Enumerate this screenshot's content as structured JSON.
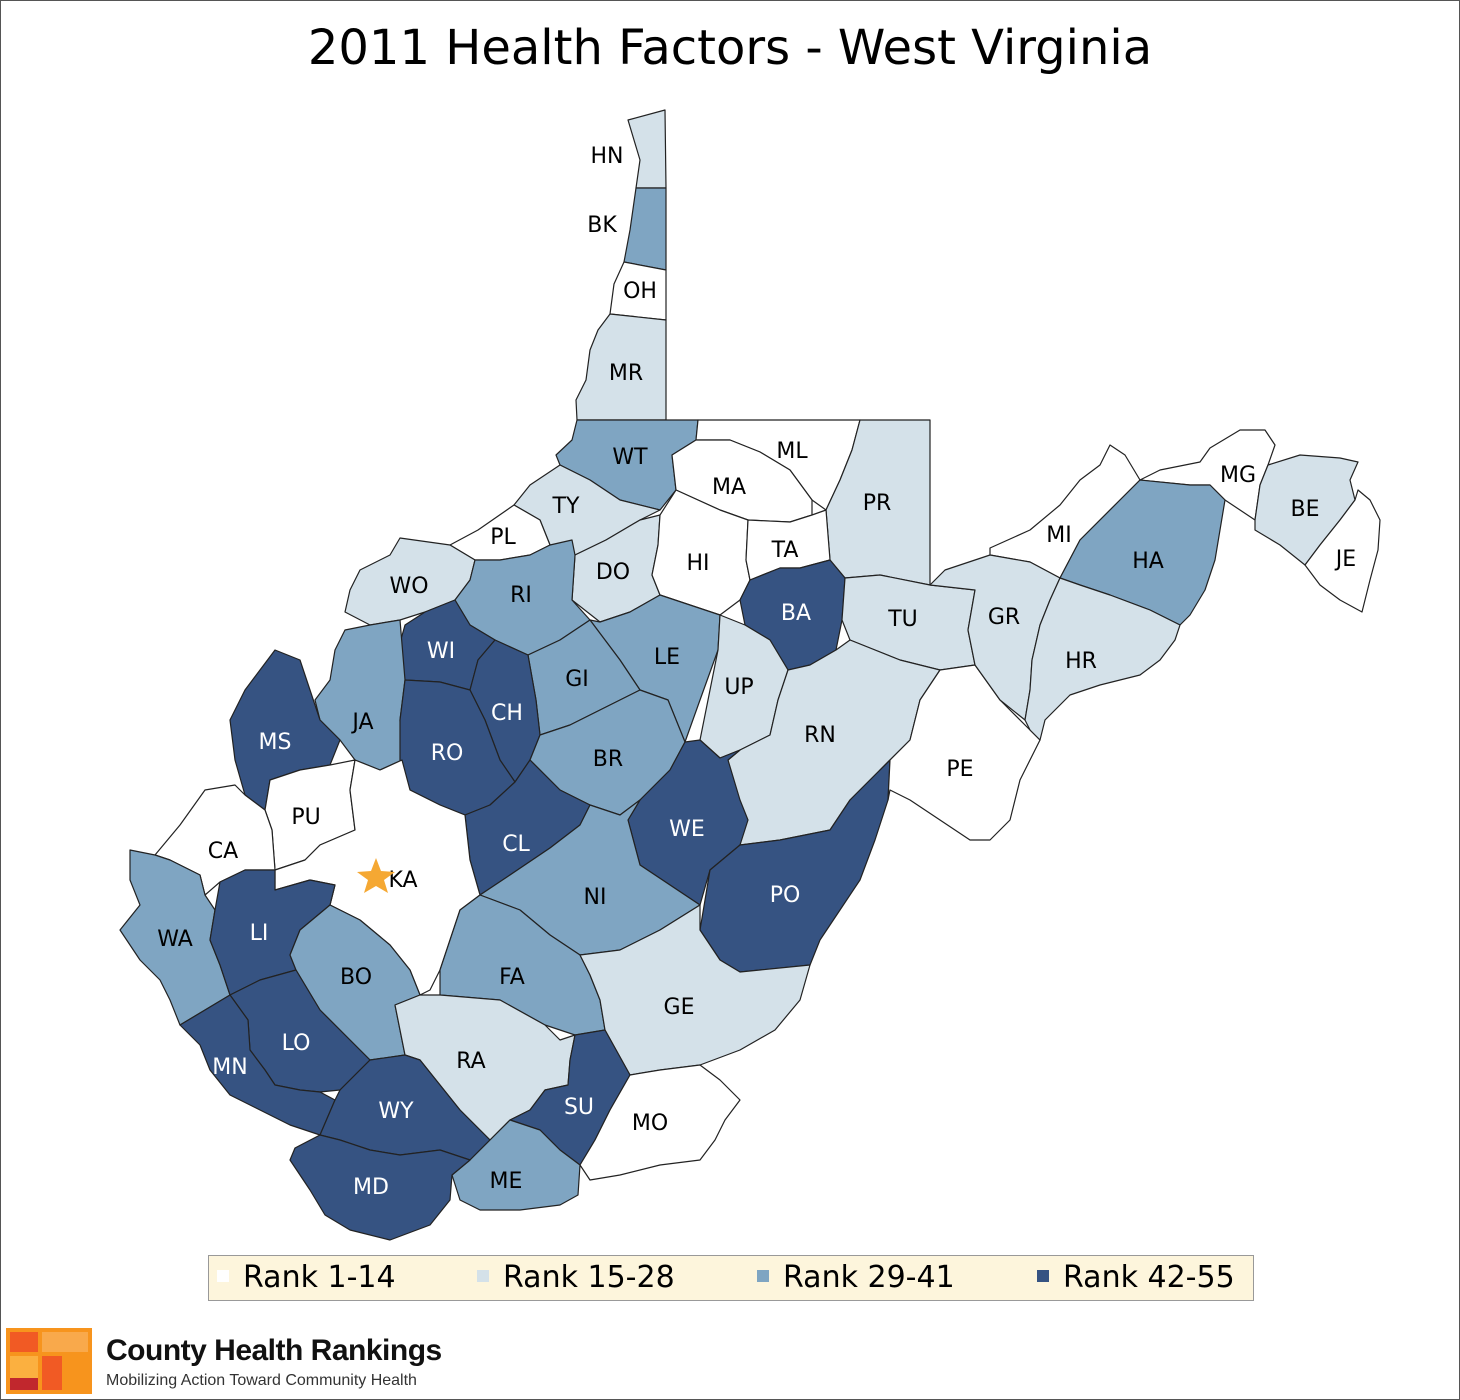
{
  "title": "2011 Health Factors - West Virginia",
  "colors": {
    "rank_1_14": "#ffffff",
    "rank_15_28": "#d4e1e9",
    "rank_29_41": "#7fa5c2",
    "rank_42_55": "#365382",
    "capital_star": "#f5a833"
  },
  "legend": [
    {
      "label": "Rank 1-14",
      "class": "rank_1_14"
    },
    {
      "label": "Rank 15-28",
      "class": "rank_15_28"
    },
    {
      "label": "Rank 29-41",
      "class": "rank_29_41"
    },
    {
      "label": "Rank 42-55",
      "class": "rank_42_55"
    }
  ],
  "counties": [
    {
      "abbr": "HN",
      "class": "rank_15_28"
    },
    {
      "abbr": "BK",
      "class": "rank_29_41"
    },
    {
      "abbr": "OH",
      "class": "rank_1_14"
    },
    {
      "abbr": "MR",
      "class": "rank_15_28"
    },
    {
      "abbr": "WT",
      "class": "rank_29_41"
    },
    {
      "abbr": "ML",
      "class": "rank_1_14"
    },
    {
      "abbr": "MA",
      "class": "rank_1_14"
    },
    {
      "abbr": "PR",
      "class": "rank_15_28"
    },
    {
      "abbr": "TY",
      "class": "rank_15_28"
    },
    {
      "abbr": "PL",
      "class": "rank_1_14"
    },
    {
      "abbr": "DO",
      "class": "rank_15_28"
    },
    {
      "abbr": "HI",
      "class": "rank_1_14"
    },
    {
      "abbr": "TA",
      "class": "rank_1_14"
    },
    {
      "abbr": "WO",
      "class": "rank_15_28"
    },
    {
      "abbr": "RI",
      "class": "rank_29_41"
    },
    {
      "abbr": "BA",
      "class": "rank_42_55"
    },
    {
      "abbr": "TU",
      "class": "rank_15_28"
    },
    {
      "abbr": "WI",
      "class": "rank_42_55"
    },
    {
      "abbr": "LE",
      "class": "rank_29_41"
    },
    {
      "abbr": "GI",
      "class": "rank_29_41"
    },
    {
      "abbr": "UP",
      "class": "rank_15_28"
    },
    {
      "abbr": "CH",
      "class": "rank_42_55"
    },
    {
      "abbr": "JA",
      "class": "rank_29_41"
    },
    {
      "abbr": "MS",
      "class": "rank_42_55"
    },
    {
      "abbr": "RO",
      "class": "rank_42_55"
    },
    {
      "abbr": "RN",
      "class": "rank_15_28"
    },
    {
      "abbr": "BR",
      "class": "rank_29_41"
    },
    {
      "abbr": "PU",
      "class": "rank_1_14"
    },
    {
      "abbr": "WE",
      "class": "rank_42_55"
    },
    {
      "abbr": "CL",
      "class": "rank_42_55"
    },
    {
      "abbr": "CA",
      "class": "rank_1_14"
    },
    {
      "abbr": "KA",
      "class": "rank_1_14"
    },
    {
      "abbr": "NI",
      "class": "rank_29_41"
    },
    {
      "abbr": "PO",
      "class": "rank_42_55"
    },
    {
      "abbr": "PE",
      "class": "rank_1_14"
    },
    {
      "abbr": "WA",
      "class": "rank_29_41"
    },
    {
      "abbr": "LI",
      "class": "rank_42_55"
    },
    {
      "abbr": "BO",
      "class": "rank_29_41"
    },
    {
      "abbr": "FA",
      "class": "rank_29_41"
    },
    {
      "abbr": "GE",
      "class": "rank_15_28"
    },
    {
      "abbr": "LO",
      "class": "rank_42_55"
    },
    {
      "abbr": "MN",
      "class": "rank_42_55"
    },
    {
      "abbr": "RA",
      "class": "rank_15_28"
    },
    {
      "abbr": "WY",
      "class": "rank_42_55"
    },
    {
      "abbr": "SU",
      "class": "rank_42_55"
    },
    {
      "abbr": "MO",
      "class": "rank_1_14"
    },
    {
      "abbr": "ME",
      "class": "rank_29_41"
    },
    {
      "abbr": "MD",
      "class": "rank_42_55"
    },
    {
      "abbr": "MI",
      "class": "rank_1_14"
    },
    {
      "abbr": "MG",
      "class": "rank_1_14"
    },
    {
      "abbr": "BE",
      "class": "rank_15_28"
    },
    {
      "abbr": "JE",
      "class": "rank_1_14"
    },
    {
      "abbr": "HA",
      "class": "rank_29_41"
    },
    {
      "abbr": "GR",
      "class": "rank_15_28"
    },
    {
      "abbr": "HR",
      "class": "rank_15_28"
    }
  ],
  "capital": "KA",
  "brand": {
    "name": "County Health Rankings",
    "tagline": "Mobilizing Action Toward Community Health"
  }
}
